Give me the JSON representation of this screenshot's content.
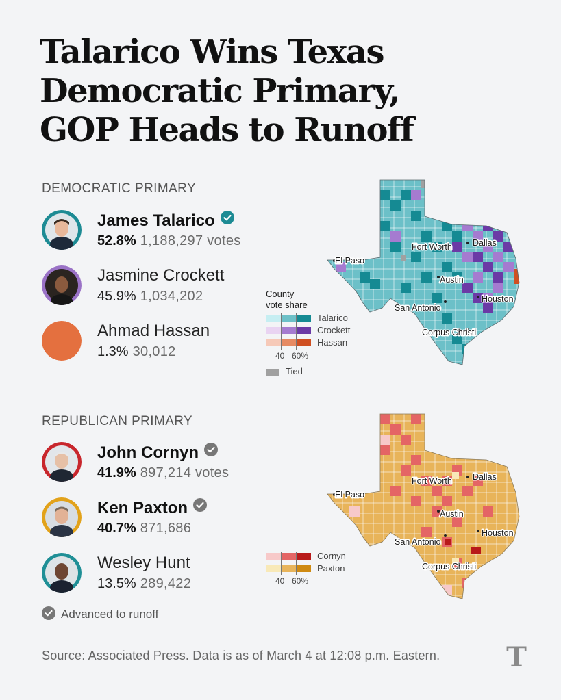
{
  "headline": {
    "line1": "Talarico Wins Texas",
    "line2": "Democratic Primary,",
    "line3": "GOP Heads to Runoff"
  },
  "democratic": {
    "section_label": "DEMOCRATIC PRIMARY",
    "candidates": [
      {
        "name": "James Talarico",
        "pct": "52.8%",
        "votes": "1,188,297 votes",
        "winner": true,
        "color": "#1d8b94"
      },
      {
        "name": "Jasmine Crockett",
        "pct": "45.9%",
        "votes": "1,034,202",
        "winner": false,
        "color": "#9a72c6"
      },
      {
        "name": "Ahmad Hassan",
        "pct": "1.3%",
        "votes": "30,012",
        "winner": false,
        "color": "#e4703f"
      }
    ],
    "legend": {
      "title_line1": "County",
      "title_line2": "vote share",
      "series": [
        {
          "name": "Talarico",
          "colors": [
            "#c6eef2",
            "#6cc0c8",
            "#158a93"
          ]
        },
        {
          "name": "Crockett",
          "colors": [
            "#e9d4f2",
            "#a57bd0",
            "#6b3aa6"
          ]
        },
        {
          "name": "Hassan",
          "colors": [
            "#f6c9b8",
            "#e68a63",
            "#cf4f22"
          ]
        }
      ],
      "tick_40": "40",
      "tick_60": "60%",
      "tied_label": "Tied",
      "tied_color": "#a0a0a0"
    },
    "map_cities": [
      "El Paso",
      "Fort Worth",
      "Dallas",
      "Austin",
      "Houston",
      "San Antonio",
      "Corpus Christi"
    ]
  },
  "republican": {
    "section_label": "REPUBLICAN PRIMARY",
    "candidates": [
      {
        "name": "John Cornyn",
        "pct": "41.9%",
        "votes": "897,214 votes",
        "advanced": true,
        "color": "#c8262c"
      },
      {
        "name": "Ken Paxton",
        "pct": "40.7%",
        "votes": "871,686",
        "advanced": true,
        "color": "#e2a21a"
      },
      {
        "name": "Wesley Hunt",
        "pct": "13.5%",
        "votes": "289,422",
        "advanced": false,
        "color": "#1f8f96"
      }
    ],
    "legend": {
      "series": [
        {
          "name": "Cornyn",
          "colors": [
            "#f7c9c9",
            "#e46565",
            "#b81a1a"
          ]
        },
        {
          "name": "Paxton",
          "colors": [
            "#f8e9b8",
            "#e8b45a",
            "#cf8a12"
          ]
        }
      ],
      "tick_40": "40",
      "tick_60": "60%"
    },
    "map_cities": [
      "El Paso",
      "Fort Worth",
      "Dallas",
      "Austin",
      "Houston",
      "San Antonio",
      "Corpus Christi"
    ],
    "runoff_note": "Advanced to runoff"
  },
  "source": "Source: Associated Press. Data is as of March 4 at 12:08 p.m. Eastern.",
  "logo_text": "T"
}
